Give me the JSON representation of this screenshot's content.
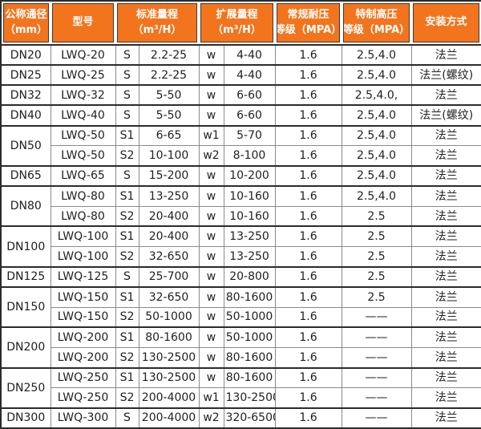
{
  "colors": {
    "header_bg": "#F2741D",
    "header_text": "#FFFFFF",
    "border_dark": "#2B2B2B",
    "border_light": "#8A8A8A",
    "body_text": "#1F1F1F"
  },
  "table": {
    "headers": [
      {
        "line1": "公称通径",
        "line2": "（mm）"
      },
      {
        "line1": "型号",
        "line2": ""
      },
      {
        "line1": "标准量程",
        "line2": "（m³/H）"
      },
      {
        "line1": "扩展量程",
        "line2": "（m³/H）"
      },
      {
        "line1": "常规耐压",
        "line2": "等级（MPA）"
      },
      {
        "line1": "特制高压",
        "line2": "等级（MPA）"
      },
      {
        "line1": "安装方式",
        "line2": ""
      }
    ],
    "groups": [
      {
        "diameter": "DN20",
        "rows": [
          {
            "model": "LWQ-20",
            "std_code": "S",
            "std_range": "2.2-25",
            "ext_code": "w",
            "ext_range": "4-40",
            "pressure": "1.6",
            "high_pressure": "2.5,4.0",
            "install": "法兰"
          }
        ]
      },
      {
        "diameter": "DN25",
        "rows": [
          {
            "model": "LWQ-25",
            "std_code": "S",
            "std_range": "2.2-25",
            "ext_code": "w",
            "ext_range": "4-40",
            "pressure": "1.6",
            "high_pressure": "2.5,4.0",
            "install": "法兰(螺纹)"
          }
        ]
      },
      {
        "diameter": "DN32",
        "rows": [
          {
            "model": "LWQ-32",
            "std_code": "S",
            "std_range": "5-50",
            "ext_code": "w",
            "ext_range": "6-60",
            "pressure": "1.6",
            "high_pressure": "2.5,4.0,",
            "install": "法兰"
          }
        ]
      },
      {
        "diameter": "DN40",
        "rows": [
          {
            "model": "LWQ-40",
            "std_code": "S",
            "std_range": "5-50",
            "ext_code": "w",
            "ext_range": "6-60",
            "pressure": "1.6",
            "high_pressure": "2.5,4.0",
            "install": "法兰(螺纹)"
          }
        ]
      },
      {
        "diameter": "DN50",
        "rows": [
          {
            "model": "LWQ-50",
            "std_code": "S1",
            "std_range": "6-65",
            "ext_code": "w1",
            "ext_range": "5-70",
            "pressure": "1.6",
            "high_pressure": "2.5,4.0",
            "install": "法兰"
          },
          {
            "model": "LWQ-50",
            "std_code": "S2",
            "std_range": "10-100",
            "ext_code": "w2",
            "ext_range": "8-100",
            "pressure": "1.6",
            "high_pressure": "2.5,4.0",
            "install": "法兰"
          }
        ]
      },
      {
        "diameter": "DN65",
        "rows": [
          {
            "model": "LWQ-65",
            "std_code": "S",
            "std_range": "15-200",
            "ext_code": "w",
            "ext_range": "10-200",
            "pressure": "1.6",
            "high_pressure": "2.5,4.0",
            "install": "法兰"
          }
        ]
      },
      {
        "diameter": "DN80",
        "rows": [
          {
            "model": "LWQ-80",
            "std_code": "S1",
            "std_range": "13-250",
            "ext_code": "w",
            "ext_range": "10-160",
            "pressure": "1.6",
            "high_pressure": "2.5,4.0",
            "install": "法兰"
          },
          {
            "model": "LWQ-80",
            "std_code": "S2",
            "std_range": "20-400",
            "ext_code": "w",
            "ext_range": "10-160",
            "pressure": "1.6",
            "high_pressure": "2.5",
            "install": "法兰"
          }
        ]
      },
      {
        "diameter": "DN100",
        "rows": [
          {
            "model": "LWQ-100",
            "std_code": "S1",
            "std_range": "20-400",
            "ext_code": "w",
            "ext_range": "13-250",
            "pressure": "1.6",
            "high_pressure": "2.5",
            "install": "法兰"
          },
          {
            "model": "LWQ-100",
            "std_code": "S2",
            "std_range": "32-650",
            "ext_code": "w",
            "ext_range": "13-250",
            "pressure": "1.6",
            "high_pressure": "2.5",
            "install": "法兰"
          }
        ]
      },
      {
        "diameter": "DN125",
        "rows": [
          {
            "model": "LWQ-125",
            "std_code": "S",
            "std_range": "25-700",
            "ext_code": "w",
            "ext_range": "20-800",
            "pressure": "1.6",
            "high_pressure": "2.5",
            "install": "法兰"
          }
        ]
      },
      {
        "diameter": "DN150",
        "rows": [
          {
            "model": "LWQ-150",
            "std_code": "S1",
            "std_range": "32-650",
            "ext_code": "w",
            "ext_range": "80-1600",
            "pressure": "1.6",
            "high_pressure": "2.5",
            "install": "法兰"
          },
          {
            "model": "LWQ-150",
            "std_code": "S2",
            "std_range": "50-1000",
            "ext_code": "w",
            "ext_range": "50-1000",
            "pressure": "1.6",
            "high_pressure": "——",
            "install": "法兰"
          }
        ]
      },
      {
        "diameter": "DN200",
        "rows": [
          {
            "model": "LWQ-200",
            "std_code": "S1",
            "std_range": "80-1600",
            "ext_code": "w",
            "ext_range": "50-1000",
            "pressure": "1.6",
            "high_pressure": "——",
            "install": "法兰"
          },
          {
            "model": "LWQ-200",
            "std_code": "S2",
            "std_range": "130-2500",
            "ext_code": "w",
            "ext_range": "80-1600",
            "pressure": "1.6",
            "high_pressure": "——",
            "install": "法兰"
          }
        ]
      },
      {
        "diameter": "DN250",
        "rows": [
          {
            "model": "LWQ-250",
            "std_code": "S1",
            "std_range": "130-2500",
            "ext_code": "w",
            "ext_range": "80-1600",
            "pressure": "1.6",
            "high_pressure": "——",
            "install": "法兰"
          },
          {
            "model": "LWQ-250",
            "std_code": "S2",
            "std_range": "200-4000",
            "ext_code": "w1",
            "ext_range": "130-2500",
            "pressure": "1.6",
            "high_pressure": "——",
            "install": "法兰"
          }
        ]
      },
      {
        "diameter": "DN300",
        "rows": [
          {
            "model": "LWQ-300",
            "std_code": "S",
            "std_range": "200-4000",
            "ext_code": "w2",
            "ext_range": "320-6500",
            "pressure": "1.6",
            "high_pressure": "——",
            "install": "法兰"
          }
        ]
      }
    ]
  }
}
